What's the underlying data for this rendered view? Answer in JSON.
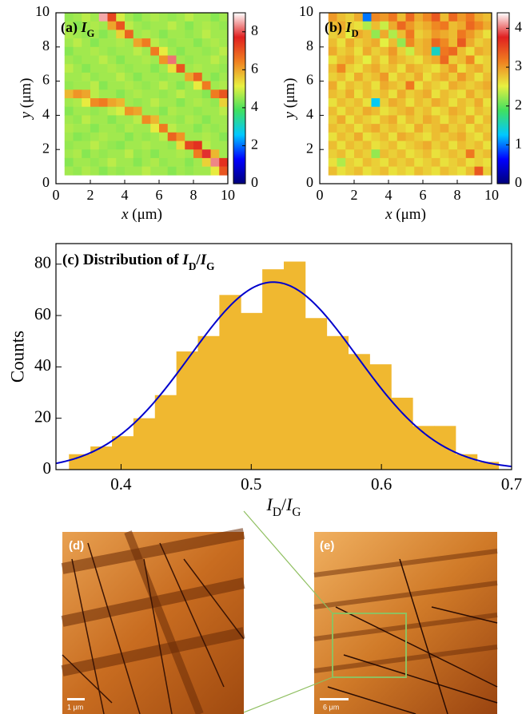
{
  "chart_data": [
    {
      "type": "heatmap",
      "label": [
        "(a) ",
        "I",
        "G"
      ],
      "xlabel": [
        "x",
        " (μm)"
      ],
      "ylabel": [
        "y",
        " (μm)"
      ],
      "xlim": [
        0,
        10
      ],
      "ylim": [
        0,
        10
      ],
      "xticks": [
        0,
        2,
        4,
        6,
        8,
        10
      ],
      "yticks": [
        0,
        2,
        4,
        6,
        8,
        10
      ],
      "clim": [
        0,
        9
      ],
      "cticks": [
        0,
        2,
        4,
        6,
        8
      ],
      "colorscale": [
        "#00007a",
        "#0000ff",
        "#00c8ff",
        "#40e060",
        "#e8f040",
        "#f08020",
        "#e02020",
        "#ffffff"
      ],
      "x": [
        0.75,
        1.25,
        1.75,
        2.25,
        2.75,
        3.25,
        3.75,
        4.25,
        4.75,
        5.25,
        5.75,
        6.25,
        6.75,
        7.25,
        7.75,
        8.25,
        8.75,
        9.25,
        9.75
      ],
      "y": [
        9.75,
        9.25,
        8.75,
        8.25,
        7.75,
        7.25,
        6.75,
        6.25,
        5.75,
        5.25,
        4.75,
        4.25,
        3.75,
        3.25,
        2.75,
        2.25,
        1.75,
        1.25,
        0.75
      ],
      "values": [
        [
          4.5,
          4.6,
          4.8,
          4.6,
          8.5,
          7.2,
          5.0,
          4.6,
          4.4,
          4.6,
          4.7,
          4.6,
          4.5,
          4.6,
          4.8,
          4.6,
          4.6,
          4.4,
          4.6
        ],
        [
          4.6,
          4.4,
          4.6,
          4.7,
          4.6,
          6.0,
          7.0,
          4.8,
          4.6,
          4.5,
          4.6,
          4.6,
          4.8,
          4.6,
          4.4,
          4.6,
          4.7,
          4.6,
          4.5
        ],
        [
          4.7,
          4.6,
          4.5,
          4.6,
          4.4,
          4.6,
          5.5,
          6.8,
          4.6,
          4.7,
          4.6,
          4.4,
          4.6,
          4.6,
          4.5,
          4.6,
          4.8,
          4.6,
          4.6
        ],
        [
          4.6,
          4.8,
          4.6,
          4.4,
          4.6,
          4.6,
          4.7,
          4.6,
          6.0,
          6.5,
          4.8,
          4.6,
          4.5,
          4.6,
          4.6,
          4.4,
          4.6,
          4.7,
          4.6
        ],
        [
          4.4,
          4.6,
          4.6,
          4.7,
          4.6,
          4.5,
          4.6,
          4.6,
          4.8,
          4.6,
          6.5,
          5.2,
          4.6,
          4.4,
          4.6,
          4.6,
          4.5,
          4.6,
          4.8
        ],
        [
          4.6,
          4.5,
          4.6,
          4.6,
          4.8,
          4.6,
          4.4,
          4.6,
          4.6,
          4.7,
          4.6,
          6.2,
          8.2,
          4.6,
          4.5,
          4.6,
          4.6,
          4.8,
          4.6
        ],
        [
          4.8,
          4.6,
          4.4,
          4.6,
          4.6,
          4.7,
          4.6,
          4.5,
          4.6,
          4.6,
          4.4,
          4.6,
          5.3,
          7.0,
          4.6,
          4.7,
          4.6,
          4.6,
          4.5
        ],
        [
          4.6,
          4.6,
          4.7,
          4.5,
          4.6,
          4.6,
          4.8,
          4.6,
          4.4,
          4.6,
          4.6,
          4.5,
          4.6,
          4.6,
          6.0,
          6.8,
          4.6,
          4.4,
          4.6
        ],
        [
          4.5,
          4.6,
          4.6,
          4.8,
          4.4,
          4.6,
          4.6,
          4.7,
          4.6,
          4.5,
          4.6,
          4.8,
          4.6,
          4.4,
          4.6,
          5.2,
          6.5,
          4.6,
          4.7
        ],
        [
          5.8,
          6.2,
          6.0,
          4.8,
          4.6,
          4.6,
          4.4,
          4.6,
          4.7,
          4.6,
          4.6,
          4.5,
          4.6,
          4.8,
          4.6,
          4.6,
          4.4,
          6.5,
          7.0
        ],
        [
          4.6,
          4.7,
          5.2,
          6.3,
          6.5,
          6.0,
          5.8,
          4.6,
          4.5,
          4.6,
          4.8,
          4.6,
          4.6,
          4.4,
          4.6,
          4.7,
          4.6,
          4.5,
          5.5
        ],
        [
          4.4,
          4.6,
          4.6,
          4.5,
          4.6,
          4.8,
          5.0,
          6.2,
          6.0,
          4.6,
          4.6,
          4.4,
          4.7,
          4.6,
          4.6,
          4.5,
          4.6,
          4.6,
          4.8
        ],
        [
          4.6,
          4.5,
          4.8,
          4.6,
          4.6,
          4.4,
          4.6,
          4.6,
          4.8,
          6.3,
          5.8,
          4.6,
          4.6,
          4.5,
          4.7,
          4.6,
          4.4,
          4.6,
          4.6
        ],
        [
          4.7,
          4.6,
          4.6,
          4.4,
          4.6,
          4.6,
          4.5,
          4.7,
          4.6,
          4.6,
          5.2,
          6.5,
          4.8,
          4.6,
          4.6,
          4.4,
          4.6,
          4.5,
          4.6
        ],
        [
          4.6,
          4.4,
          4.5,
          4.6,
          4.7,
          4.6,
          4.6,
          4.4,
          4.6,
          4.5,
          4.6,
          4.8,
          6.8,
          6.2,
          4.6,
          4.6,
          4.7,
          4.6,
          4.4
        ],
        [
          4.5,
          4.6,
          4.6,
          4.8,
          4.6,
          4.5,
          4.4,
          4.6,
          4.6,
          4.7,
          4.6,
          4.6,
          4.5,
          5.4,
          7.2,
          7.5,
          4.8,
          4.6,
          4.6
        ],
        [
          4.6,
          4.7,
          4.4,
          4.6,
          4.5,
          4.6,
          4.6,
          4.8,
          4.5,
          4.6,
          4.4,
          4.6,
          4.6,
          4.7,
          4.6,
          6.5,
          7.8,
          5.8,
          4.6
        ],
        [
          4.4,
          4.6,
          4.6,
          4.5,
          4.6,
          4.8,
          4.6,
          4.6,
          4.4,
          4.6,
          4.7,
          4.5,
          4.6,
          4.6,
          4.4,
          4.6,
          5.5,
          8.3,
          7.5
        ],
        [
          4.6,
          4.5,
          4.7,
          4.6,
          4.4,
          4.6,
          4.5,
          4.6,
          4.6,
          4.8,
          4.6,
          4.6,
          4.4,
          4.6,
          4.5,
          4.6,
          4.6,
          5.2,
          7.0
        ]
      ]
    },
    {
      "type": "heatmap",
      "label": [
        "(b) ",
        "I",
        "D"
      ],
      "xlabel": [
        "x",
        " (μm)"
      ],
      "ylabel": [
        "y",
        " (μm)"
      ],
      "xlim": [
        0,
        10
      ],
      "ylim": [
        0,
        10
      ],
      "xticks": [
        0,
        2,
        4,
        6,
        8,
        10
      ],
      "yticks": [
        0,
        2,
        4,
        6,
        8,
        10
      ],
      "clim": [
        0,
        4.4
      ],
      "cticks": [
        0,
        1,
        2,
        3,
        4
      ],
      "colorscale": [
        "#00007a",
        "#0000ff",
        "#00c8ff",
        "#40e060",
        "#e8f040",
        "#f08020",
        "#e02020",
        "#ffffff"
      ],
      "x": [
        0.75,
        1.25,
        1.75,
        2.25,
        2.75,
        3.25,
        3.75,
        4.25,
        4.75,
        5.25,
        5.75,
        6.25,
        6.75,
        7.25,
        7.75,
        8.25,
        8.75,
        9.25,
        9.75
      ],
      "y": [
        9.75,
        9.25,
        8.75,
        8.25,
        7.75,
        7.25,
        6.75,
        6.25,
        5.75,
        5.25,
        4.75,
        4.25,
        3.75,
        3.25,
        2.75,
        2.25,
        1.75,
        1.25,
        0.75
      ],
      "values": [
        [
          3.0,
          2.8,
          2.7,
          2.9,
          1.0,
          3.1,
          3.0,
          3.2,
          2.8,
          3.3,
          2.9,
          3.1,
          3.4,
          2.8,
          3.3,
          3.0,
          3.2,
          2.9,
          2.8
        ],
        [
          2.8,
          2.9,
          2.7,
          2.6,
          2.3,
          2.8,
          2.4,
          2.9,
          3.3,
          3.0,
          2.8,
          2.9,
          3.1,
          3.2,
          2.8,
          2.9,
          3.3,
          3.1,
          2.9
        ],
        [
          2.7,
          2.8,
          2.5,
          2.9,
          2.8,
          2.2,
          2.9,
          2.3,
          2.8,
          3.2,
          2.7,
          2.8,
          3.0,
          2.9,
          2.8,
          3.2,
          3.0,
          2.8,
          2.6
        ],
        [
          2.8,
          2.6,
          2.9,
          2.7,
          2.8,
          2.9,
          2.5,
          2.8,
          2.2,
          3.1,
          2.8,
          2.9,
          3.3,
          3.1,
          2.8,
          3.4,
          2.9,
          2.7,
          2.8
        ],
        [
          2.9,
          2.7,
          2.8,
          2.6,
          2.9,
          2.7,
          2.8,
          3.0,
          2.7,
          2.4,
          2.8,
          2.9,
          1.5,
          3.2,
          3.3,
          2.8,
          2.6,
          2.9,
          2.8
        ],
        [
          2.6,
          2.8,
          2.9,
          2.7,
          2.5,
          2.8,
          2.6,
          2.9,
          2.8,
          2.7,
          2.6,
          2.8,
          2.9,
          3.3,
          2.7,
          2.8,
          3.1,
          2.6,
          2.7
        ],
        [
          2.8,
          3.1,
          2.7,
          2.6,
          2.8,
          2.9,
          2.7,
          2.8,
          2.6,
          2.9,
          2.8,
          2.7,
          2.6,
          2.8,
          3.0,
          2.6,
          2.8,
          2.9,
          2.7
        ],
        [
          2.7,
          2.8,
          2.6,
          2.9,
          2.7,
          2.8,
          3.0,
          2.6,
          2.8,
          2.7,
          2.9,
          2.6,
          2.8,
          2.9,
          2.7,
          3.0,
          2.8,
          2.6,
          2.8
        ],
        [
          2.9,
          2.6,
          2.8,
          2.7,
          2.8,
          2.6,
          2.9,
          2.8,
          2.7,
          3.2,
          2.6,
          2.8,
          2.7,
          2.6,
          2.9,
          2.8,
          2.7,
          2.8,
          2.9
        ],
        [
          2.8,
          2.7,
          2.9,
          2.6,
          2.8,
          2.7,
          2.8,
          2.6,
          2.9,
          2.7,
          2.8,
          2.9,
          2.6,
          2.8,
          2.7,
          2.6,
          2.9,
          2.7,
          2.8
        ],
        [
          2.6,
          2.8,
          2.7,
          2.8,
          2.6,
          1.3,
          2.7,
          2.9,
          2.8,
          2.6,
          2.8,
          2.7,
          2.9,
          2.8,
          2.6,
          2.8,
          2.7,
          2.9,
          2.6
        ],
        [
          2.8,
          2.6,
          2.8,
          2.7,
          2.9,
          2.8,
          2.6,
          2.7,
          2.8,
          2.9,
          2.7,
          2.8,
          2.6,
          2.7,
          2.9,
          2.8,
          2.6,
          2.8,
          2.7
        ],
        [
          2.7,
          2.9,
          2.6,
          2.8,
          2.7,
          2.6,
          2.8,
          2.9,
          2.6,
          2.8,
          2.7,
          2.9,
          2.8,
          2.6,
          2.8,
          2.7,
          2.9,
          2.6,
          2.8
        ],
        [
          2.8,
          2.7,
          2.8,
          2.6,
          2.8,
          2.9,
          2.7,
          2.8,
          2.7,
          2.6,
          2.9,
          2.7,
          2.8,
          2.9,
          2.7,
          2.8,
          2.6,
          2.8,
          2.7
        ],
        [
          2.6,
          2.8,
          2.7,
          2.9,
          2.6,
          2.7,
          2.8,
          2.6,
          2.9,
          2.8,
          2.7,
          2.6,
          2.8,
          2.7,
          2.8,
          2.9,
          2.7,
          2.6,
          2.8
        ],
        [
          2.8,
          2.6,
          2.8,
          2.7,
          2.8,
          2.6,
          2.7,
          2.8,
          2.6,
          2.7,
          2.8,
          2.9,
          2.7,
          2.8,
          2.6,
          2.8,
          2.7,
          2.8,
          2.6
        ],
        [
          2.7,
          2.8,
          2.6,
          2.8,
          2.7,
          2.2,
          2.8,
          2.7,
          2.8,
          2.6,
          2.7,
          2.8,
          2.6,
          2.7,
          2.8,
          2.7,
          3.2,
          2.7,
          2.8
        ],
        [
          2.6,
          2.3,
          2.7,
          2.6,
          2.8,
          2.7,
          2.6,
          2.8,
          2.7,
          2.8,
          2.6,
          2.7,
          2.8,
          2.6,
          2.7,
          2.8,
          2.6,
          2.7,
          2.6
        ],
        [
          2.8,
          2.6,
          2.7,
          2.8,
          2.6,
          2.7,
          2.8,
          2.6,
          2.7,
          2.6,
          2.8,
          2.7,
          2.6,
          2.8,
          2.7,
          2.6,
          2.8,
          3.4,
          2.7
        ]
      ]
    },
    {
      "type": "histogram",
      "title": [
        "(c) Distribution of ",
        "I",
        "D",
        "/",
        "I",
        "G"
      ],
      "xlabel": [
        "I",
        "D",
        "/",
        "I",
        "G"
      ],
      "ylabel": "Counts",
      "color": "#f0b830",
      "bins": [
        0.36,
        0.3765,
        0.393,
        0.4095,
        0.426,
        0.4425,
        0.459,
        0.4755,
        0.492,
        0.5085,
        0.525,
        0.5415,
        0.558,
        0.5745,
        0.591,
        0.6075,
        0.624,
        0.6405,
        0.657,
        0.6735,
        0.69
      ],
      "counts": [
        6,
        9,
        13,
        20,
        29,
        46,
        52,
        68,
        61,
        78,
        81,
        59,
        52,
        45,
        41,
        28,
        17,
        17,
        6,
        3
      ],
      "fit": {
        "amplitude": 73,
        "center": 0.517,
        "sigma": 0.064,
        "color": "#0000cc"
      },
      "xlim": [
        0.35,
        0.7
      ],
      "ylim": [
        0,
        88
      ],
      "xticks": [
        0.4,
        0.5,
        0.6,
        0.7
      ],
      "yticks": [
        0,
        20,
        40,
        60,
        80
      ]
    }
  ],
  "images": [
    {
      "label": "(d)",
      "scale_bar": "1 μm"
    },
    {
      "label": "(e)",
      "scale_bar": "6 μm"
    }
  ]
}
